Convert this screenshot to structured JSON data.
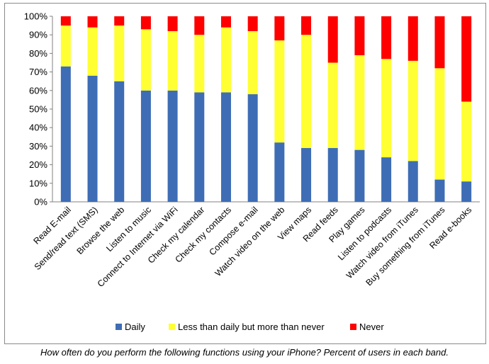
{
  "chart_data": {
    "type": "bar",
    "stacked": true,
    "categories": [
      "Read E-mail",
      "Send/read text (SMS)",
      "Browse the web",
      "Listen to music",
      "Connect to Internet via WiFi",
      "Check my calendar",
      "Check my contacts",
      "Compose e-mail",
      "Watch video on the web",
      "View maps",
      "Read feeds",
      "Play games",
      "Listen to podcasts",
      "Watch video from iTunes",
      "Buy something from iTunes",
      "Read e-books"
    ],
    "series": [
      {
        "name": "Daily",
        "color": "#3E6DB5",
        "values": [
          73,
          68,
          65,
          60,
          60,
          59,
          59,
          58,
          32,
          29,
          29,
          28,
          24,
          22,
          12,
          11
        ]
      },
      {
        "name": "Less than daily but more than never",
        "color": "#FFFF33",
        "values": [
          22,
          26,
          30,
          33,
          32,
          31,
          35,
          34,
          55,
          61,
          46,
          51,
          53,
          54,
          60,
          43
        ]
      },
      {
        "name": "Never",
        "color": "#FF0000",
        "values": [
          5,
          6,
          5,
          7,
          8,
          10,
          6,
          8,
          13,
          10,
          25,
          21,
          23,
          24,
          28,
          46
        ]
      }
    ],
    "ylim": [
      0,
      100
    ],
    "yticks": [
      "0%",
      "10%",
      "20%",
      "30%",
      "40%",
      "50%",
      "60%",
      "70%",
      "80%",
      "90%",
      "100%"
    ],
    "grid": false,
    "legend_position": "bottom"
  },
  "caption": "How often do you perform the following functions using your iPhone?  Percent of users in each band."
}
